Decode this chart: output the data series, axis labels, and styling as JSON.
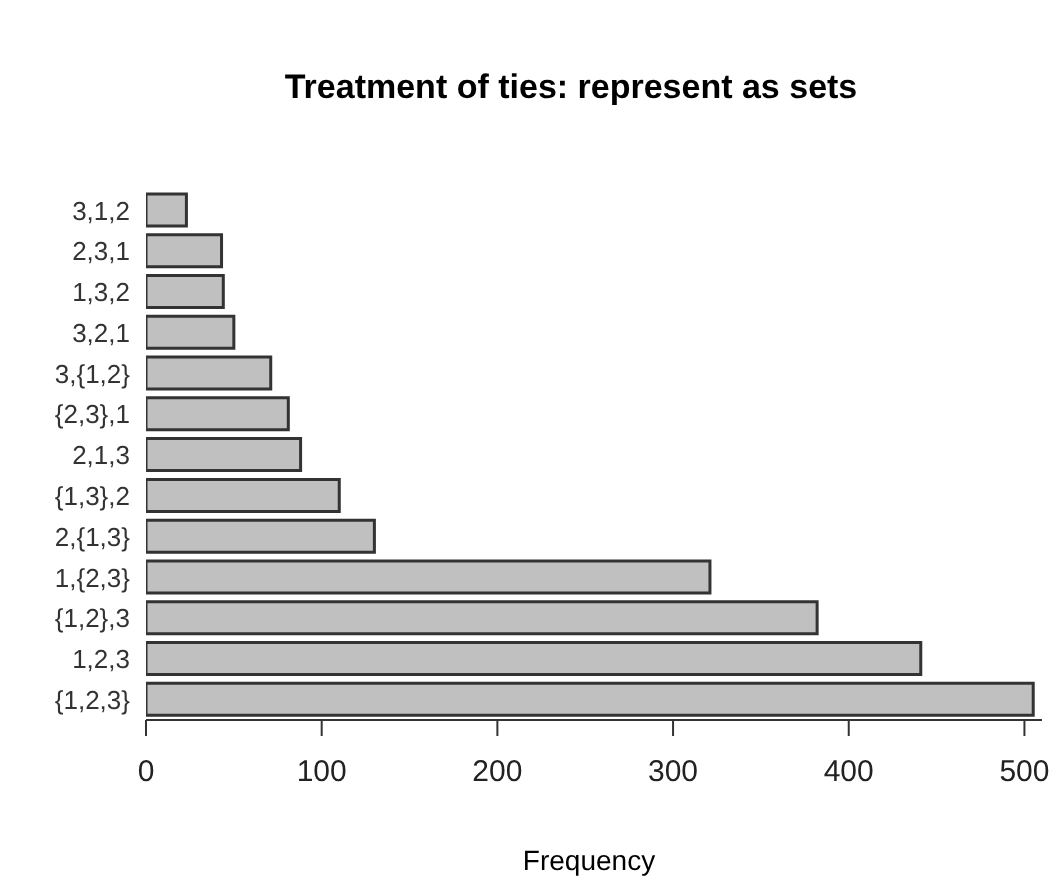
{
  "chart_data": {
    "type": "bar",
    "orientation": "horizontal",
    "title": "Treatment of ties: represent as sets",
    "xlabel": "Frequency",
    "categories": [
      "3,1,2",
      "2,3,1",
      "1,3,2",
      "3,2,1",
      "3,{1,2}",
      "{2,3},1",
      "2,1,3",
      "{1,3},2",
      "2,{1,3}",
      "1,{2,3}",
      "{1,2},3",
      "1,2,3",
      "{1,2,3}"
    ],
    "values": [
      23,
      43,
      44,
      50,
      71,
      81,
      88,
      110,
      130,
      321,
      382,
      441,
      505
    ],
    "color": "#c0c0c0",
    "xlim": [
      0,
      510
    ],
    "xticks": [
      0,
      100,
      200,
      300,
      400,
      500
    ],
    "grid": false,
    "legend": false
  }
}
